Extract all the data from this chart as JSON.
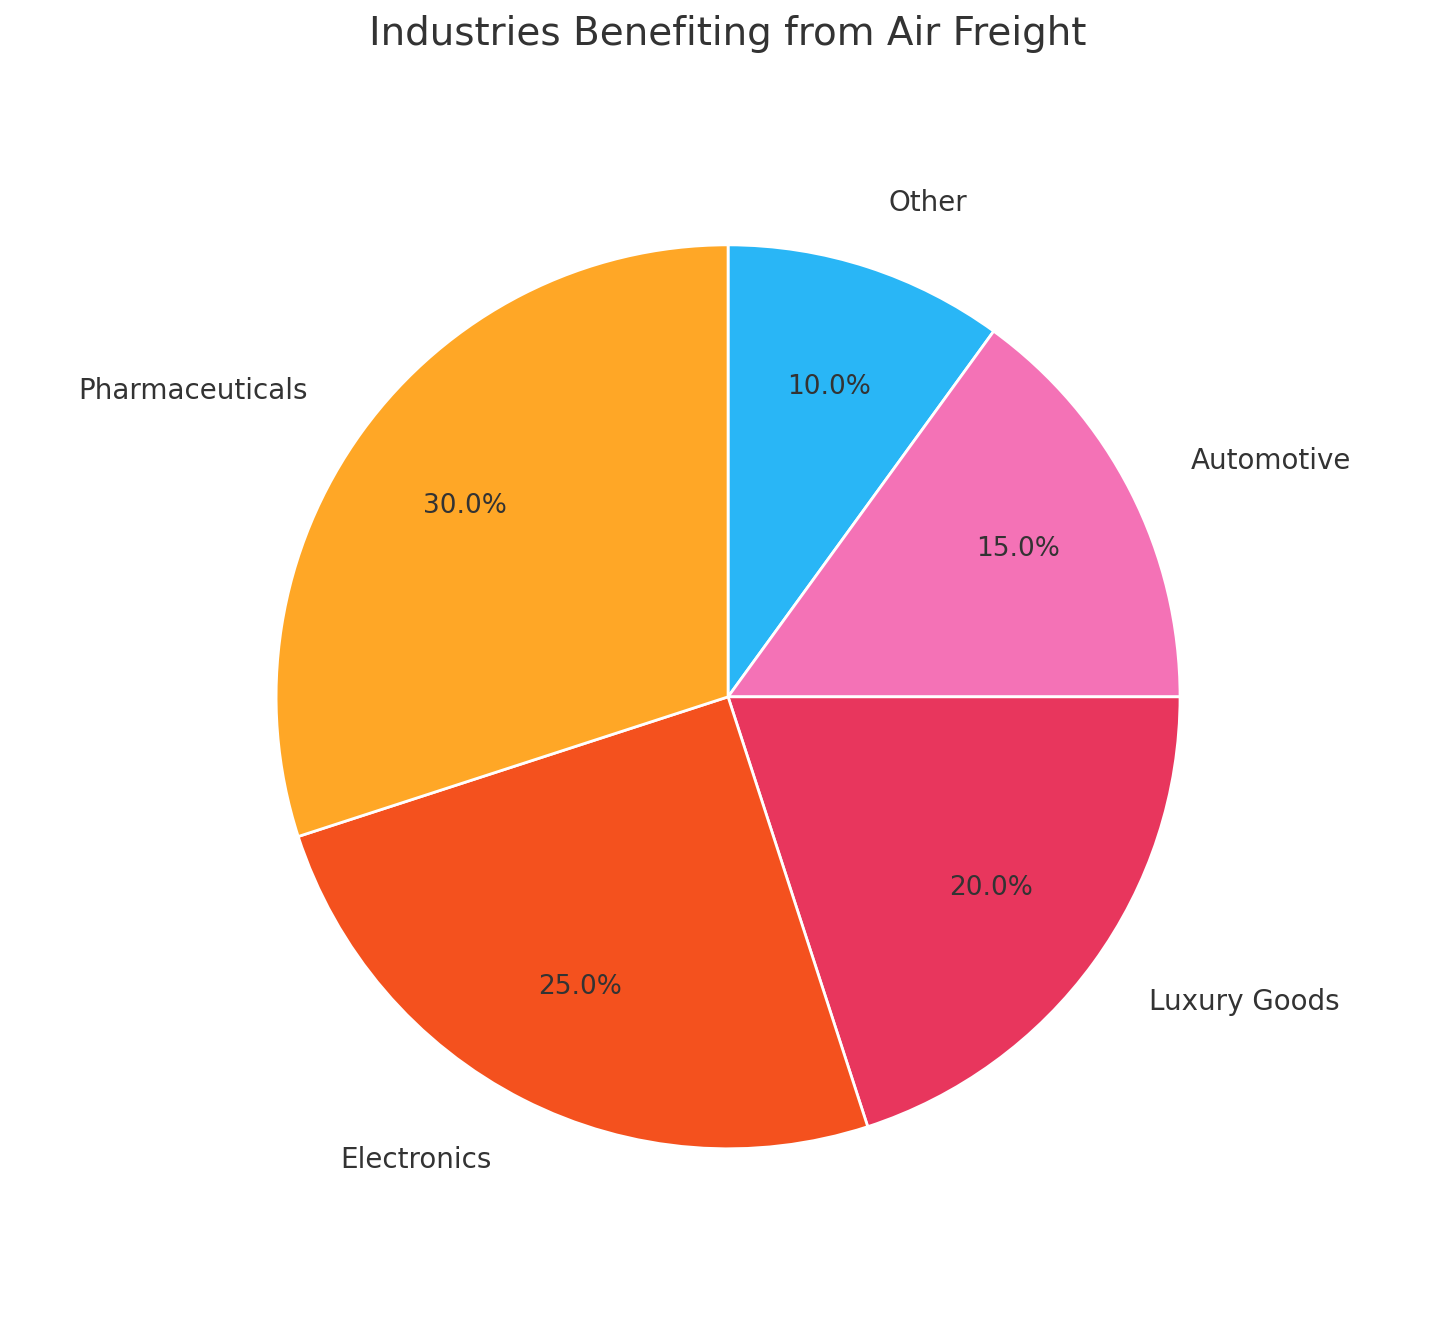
{
  "title": "Industries Benefiting from Air Freight",
  "title_fontsize": 28,
  "labels": [
    "Other",
    "Automotive",
    "Luxury Goods",
    "Electronics",
    "Pharmaceuticals"
  ],
  "values": [
    10.0,
    15.0,
    20.0,
    25.0,
    30.0
  ],
  "colors": [
    "#29B6F6",
    "#F472B6",
    "#E8365D",
    "#F4511E",
    "#FFA726"
  ],
  "label_fontsize": 20,
  "pct_fontsize": 19,
  "startangle": 90,
  "background_color": "#FFFFFF",
  "pct_distance": 0.72,
  "label_distance": 1.15
}
